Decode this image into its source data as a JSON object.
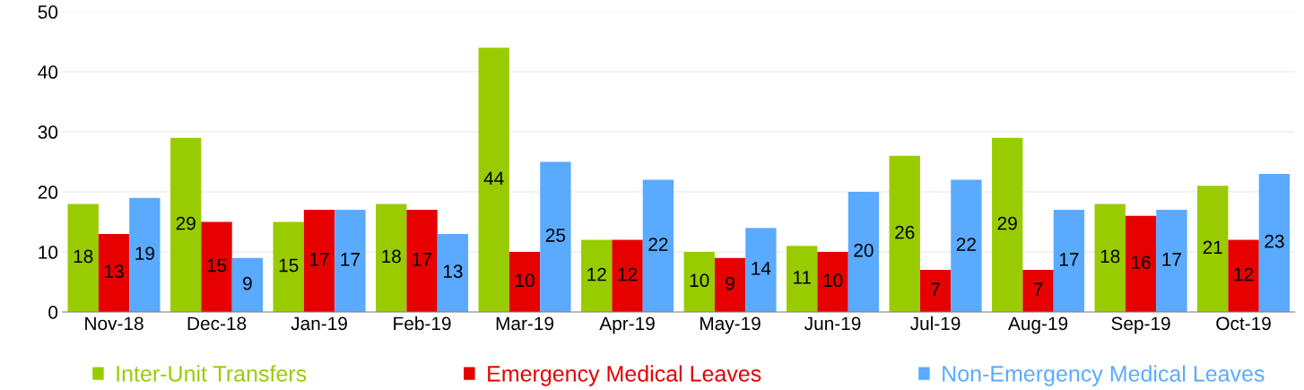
{
  "chart_data": {
    "type": "bar",
    "categories": [
      "Nov-18",
      "Dec-18",
      "Jan-19",
      "Feb-19",
      "Mar-19",
      "Apr-19",
      "May-19",
      "Jun-19",
      "Jul-19",
      "Aug-19",
      "Sep-19",
      "Oct-19"
    ],
    "series": [
      {
        "name": "Inter-Unit Transfers",
        "color": "#99cc00",
        "values": [
          18,
          29,
          15,
          18,
          44,
          12,
          10,
          11,
          26,
          29,
          18,
          21
        ]
      },
      {
        "name": "Emergency Medical Leaves",
        "color": "#e60000",
        "values": [
          13,
          15,
          17,
          17,
          10,
          12,
          9,
          10,
          7,
          7,
          16,
          12
        ]
      },
      {
        "name": "Non-Emergency Medical Leaves",
        "color": "#5aaaff",
        "values": [
          19,
          9,
          17,
          13,
          25,
          22,
          14,
          20,
          22,
          17,
          17,
          23
        ]
      }
    ],
    "ylim": [
      0,
      50
    ],
    "yticks": [
      0,
      10,
      20,
      30,
      40,
      50
    ],
    "grid": "y",
    "legend": "bottom",
    "data_labels": true
  }
}
